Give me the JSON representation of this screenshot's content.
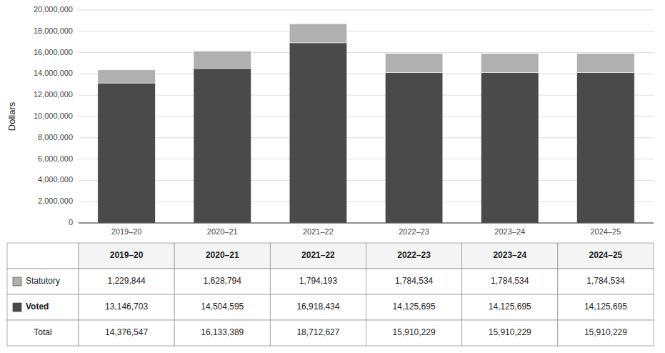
{
  "chart_data": {
    "type": "bar",
    "stacked": true,
    "grid": true,
    "ylabel": "Dollars",
    "categories": [
      "2019–20",
      "2020–21",
      "2021–22",
      "2022–23",
      "2023–24",
      "2024–25"
    ],
    "series": [
      {
        "name": "Voted",
        "color": "#4a4a4a",
        "values": [
          13146703,
          14504595,
          16918434,
          14125695,
          14125695,
          14125695
        ],
        "value_labels": [
          "13,146,703",
          "14,504,595",
          "16,918,434",
          "14,125,695",
          "14,125,695",
          "14,125,695"
        ]
      },
      {
        "name": "Statutory",
        "color": "#b0b0b0",
        "values": [
          1229844,
          1628794,
          1794193,
          1784534,
          1784534,
          1784534
        ],
        "value_labels": [
          "1,229,844",
          "1,628,794",
          "1,794,193",
          "1,784,534",
          "1,784,534",
          "1,784,534"
        ]
      }
    ],
    "total_label": "Total",
    "totals": [
      14376547,
      16133389,
      18712627,
      15910229,
      15910229,
      15910229
    ],
    "total_labels": [
      "14,376,547",
      "16,133,389",
      "18,712,627",
      "15,910,229",
      "15,910,229",
      "15,910,229"
    ],
    "ylim": [
      0,
      20000000
    ],
    "yticks": [
      0,
      {
        "value": 2000000,
        "label": "2,000,000"
      },
      {
        "value": 4000000,
        "label": "4,000,000"
      },
      {
        "value": 6000000,
        "label": "6,000,000"
      },
      {
        "value": 8000000,
        "label": "8,000,000"
      },
      {
        "value": 10000000,
        "label": "10,000,000"
      },
      {
        "value": 12000000,
        "label": "12,000,000"
      },
      {
        "value": 14000000,
        "label": "14,000,000"
      },
      {
        "value": 16000000,
        "label": "16,000,000"
      },
      {
        "value": 18000000,
        "label": "18,000,000"
      },
      {
        "value": 20000000,
        "label": "20,000,000"
      }
    ]
  }
}
